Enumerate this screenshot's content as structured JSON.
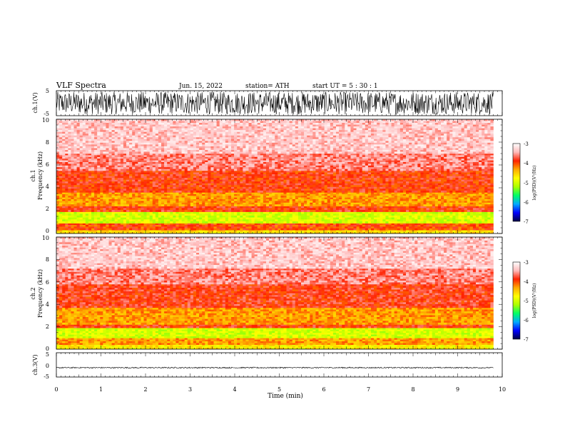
{
  "header": {
    "title": "VLF  Spectra",
    "date": "Jun. 15, 2022",
    "station": "station= ATH",
    "start": "start  UT  =    5  : 30 : 1"
  },
  "colors": {
    "colormap": [
      "#000044",
      "#0000ff",
      "#00aaff",
      "#00ff66",
      "#aaff00",
      "#ffff00",
      "#ffaa00",
      "#ff2200",
      "#ffbbbb",
      "#ffffff"
    ],
    "trace": "#000000",
    "frame": "#000000"
  },
  "chart_data": [
    {
      "id": "ch1-waveform",
      "type": "line",
      "ylabel": "ch.1(V)",
      "ylim": [
        -5,
        5
      ],
      "yticks": [
        "5",
        "-5"
      ],
      "xlim": [
        0,
        9.8
      ],
      "amplitude_envelope": {
        "min": -4.5,
        "max": 4.6
      }
    },
    {
      "id": "ch1-spectrogram",
      "type": "heatmap",
      "ylabel_lines": [
        "ch.1",
        "Frequency  (kHz)"
      ],
      "ylim": [
        0,
        10
      ],
      "yticks": [
        "0",
        "2",
        "4",
        "6",
        "8",
        "10"
      ],
      "xlim": [
        0,
        9.8
      ],
      "colorbar": {
        "label": "log(PSD)(V²/Hz)",
        "range": [
          -7,
          -3
        ],
        "ticks": [
          "-3",
          "-4",
          "-5",
          "-6",
          "-7"
        ]
      },
      "bands_log_psd": [
        {
          "f": [
            0,
            0.3
          ],
          "value": -4.6
        },
        {
          "f": [
            0.3,
            0.9
          ],
          "value": -4.0
        },
        {
          "f": [
            0.9,
            1.9
          ],
          "value": -5.0
        },
        {
          "f": [
            1.9,
            2.4
          ],
          "value": -3.9
        },
        {
          "f": [
            2.4,
            3.6
          ],
          "value": -4.3
        },
        {
          "f": [
            3.6,
            5.5
          ],
          "value": -3.9
        },
        {
          "f": [
            5.5,
            7.0
          ],
          "value": -3.6
        },
        {
          "f": [
            7.0,
            10.0
          ],
          "value": -3.35
        }
      ]
    },
    {
      "id": "ch2-spectrogram",
      "type": "heatmap",
      "ylabel_lines": [
        "ch.2",
        "Frequency  (kHz)"
      ],
      "ylim": [
        0,
        10
      ],
      "yticks": [
        "0",
        "2",
        "4",
        "6",
        "8",
        "10"
      ],
      "xlim": [
        0,
        9.8
      ],
      "colorbar": {
        "label": "log(PSD)(V²/Hz)",
        "range": [
          -7,
          -3
        ],
        "ticks": [
          "-3",
          "-4",
          "-5",
          "-6",
          "-7"
        ]
      },
      "bands_log_psd": [
        {
          "f": [
            0,
            0.4
          ],
          "value": -4.7
        },
        {
          "f": [
            0.4,
            1.0
          ],
          "value": -4.3
        },
        {
          "f": [
            1.0,
            1.9
          ],
          "value": -5.0
        },
        {
          "f": [
            1.9,
            2.2
          ],
          "value": -3.9
        },
        {
          "f": [
            2.2,
            3.7
          ],
          "value": -4.3
        },
        {
          "f": [
            3.7,
            5.8
          ],
          "value": -3.85
        },
        {
          "f": [
            5.8,
            7.2
          ],
          "value": -3.6
        },
        {
          "f": [
            7.2,
            10.0
          ],
          "value": -3.35
        }
      ]
    },
    {
      "id": "ch3-waveform",
      "type": "line",
      "ylabel": "ch.3(V)",
      "ylim": [
        -5,
        5
      ],
      "yticks": [
        "5",
        "0",
        "-5"
      ],
      "xlim": [
        0,
        9.8
      ],
      "amplitude_envelope": {
        "min": -1.4,
        "max": -0.9
      },
      "xlabel": "Time  (min)",
      "xaxis_range": [
        0,
        10
      ],
      "xticks": [
        "0",
        "1",
        "2",
        "3",
        "4",
        "5",
        "6",
        "7",
        "8",
        "9",
        "10"
      ]
    }
  ]
}
